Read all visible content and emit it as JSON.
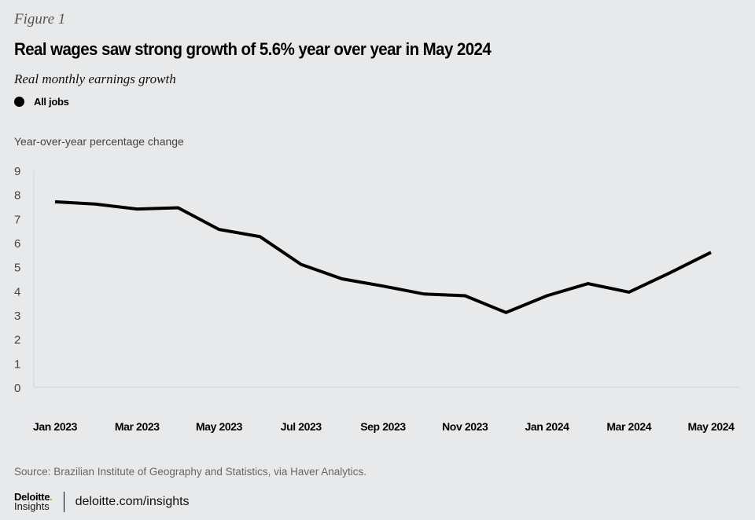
{
  "header": {
    "figure_label": "Figure 1",
    "title": "Real wages saw strong growth of 5.6% year over year in May 2024",
    "subtitle": "Real monthly earnings growth"
  },
  "legend": [
    {
      "label": "All jobs",
      "color": "#000000"
    }
  ],
  "footer": {
    "source": "Source:  Brazilian Institute of Geography and Statistics, via Haver Analytics.",
    "logo_top": "Deloitte",
    "logo_dot": ".",
    "logo_bottom": "Insights",
    "link": "deloitte.com/insights",
    "logo_accent": "#86bc25"
  },
  "chart_data": {
    "type": "line",
    "title": "Real wages saw strong growth of 5.6% year over year in May 2024",
    "subtitle": "Real monthly earnings growth",
    "ylabel": "Year-over-year percentage change",
    "xlabel": "",
    "ylim": [
      0,
      9
    ],
    "yticks": [
      "0",
      "1",
      "2",
      "3",
      "4",
      "5",
      "6",
      "7",
      "8",
      "9"
    ],
    "grid": false,
    "legend_position": "top-left",
    "x": [
      "Jan 2023",
      "Feb 2023",
      "Mar 2023",
      "Apr 2023",
      "May 2023",
      "Jun 2023",
      "Jul 2023",
      "Aug 2023",
      "Sep 2023",
      "Oct 2023",
      "Nov 2023",
      "Dec 2023",
      "Jan 2024",
      "Feb 2024",
      "Mar 2024",
      "Apr 2024",
      "May 2024"
    ],
    "xtick_labels": [
      "Jan 2023",
      "Mar 2023",
      "May 2023",
      "Jul 2023",
      "Sep 2023",
      "Nov 2023",
      "Jan 2024",
      "Mar 2024",
      "May 2024"
    ],
    "series": [
      {
        "name": "All jobs",
        "color": "#000000",
        "values": [
          7.7,
          7.6,
          7.4,
          7.45,
          6.55,
          6.25,
          5.1,
          4.5,
          4.2,
          3.87,
          3.8,
          3.1,
          3.8,
          4.3,
          3.95,
          4.75,
          5.6
        ]
      }
    ]
  }
}
